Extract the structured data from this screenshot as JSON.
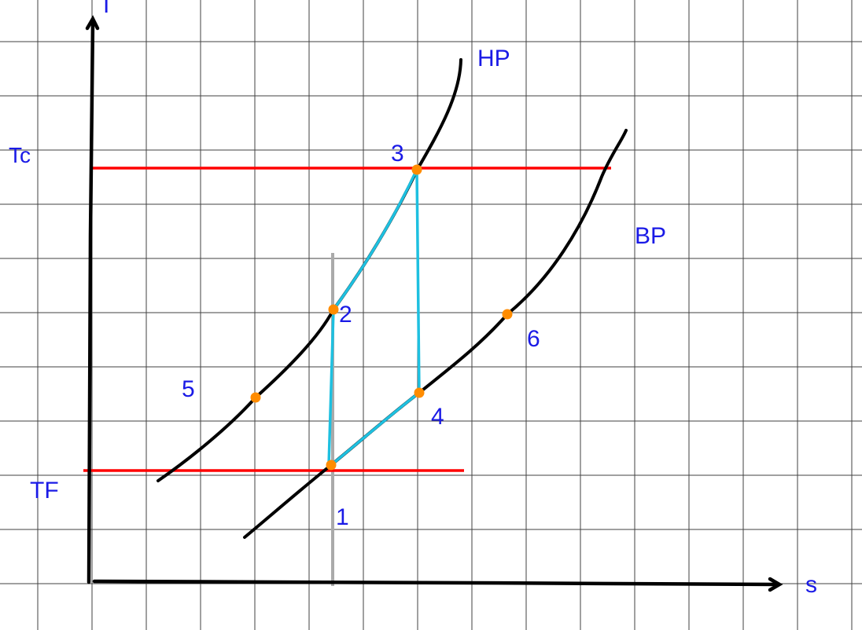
{
  "colors": {
    "grid": "#222222",
    "axis": "#000000",
    "isobar": "#000000",
    "isotherm": "#ff0000",
    "cycle": "#1ec0e0",
    "vertical_ref": "#aaaaaa",
    "point": "#ff8c00",
    "label": "#1a1ae6"
  },
  "axes": {
    "x_label": "s",
    "y_label": "T"
  },
  "isotherms": [
    {
      "id": "tc",
      "label": "Tc"
    },
    {
      "id": "tf",
      "label": "TF"
    }
  ],
  "isobars": [
    {
      "id": "hp",
      "label": "HP"
    },
    {
      "id": "bp",
      "label": "BP"
    }
  ],
  "points": [
    {
      "id": "1",
      "label": "1"
    },
    {
      "id": "2",
      "label": "2"
    },
    {
      "id": "3",
      "label": "3"
    },
    {
      "id": "4",
      "label": "4"
    },
    {
      "id": "5",
      "label": "5"
    },
    {
      "id": "6",
      "label": "6"
    }
  ]
}
